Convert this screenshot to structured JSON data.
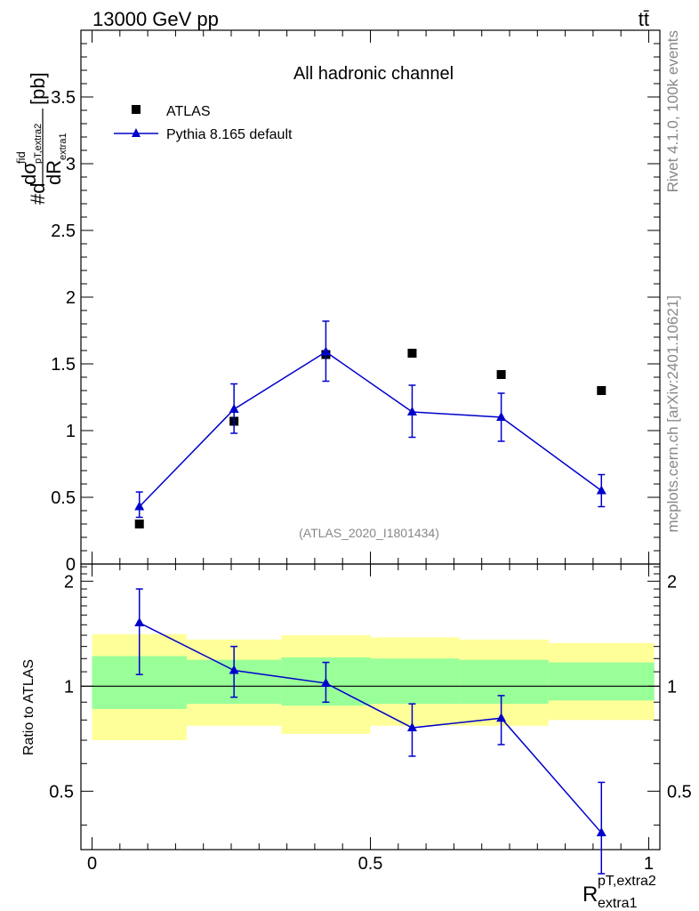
{
  "header": {
    "left_label": "13000 GeV pp",
    "right_label": "tt̄"
  },
  "side_labels": {
    "rivet": "Rivet 4.1.0,  100k events",
    "mcplots": "mcplots.cern.ch [arXiv:2401.10621]"
  },
  "chart_data": [
    {
      "type": "scatter",
      "panel": "main",
      "title": "All hadronic channel",
      "watermark": "(ATLAS_2020_I1801434)",
      "xlabel": {
        "base": "R",
        "sup": "pT,extra2",
        "sub": "extra1"
      },
      "ylabel": {
        "prefix": "#d",
        "num": "dσ",
        "num_sup": "fid",
        "num_sub": "pT,extra2",
        "den": "dR",
        "den_sub": "extra1",
        "unit": "[pb]"
      },
      "xlim": [
        -0.02,
        1.02
      ],
      "ylim": [
        0,
        4.0
      ],
      "yticks": [
        0,
        0.5,
        1,
        1.5,
        2,
        2.5,
        3,
        3.5
      ],
      "ytick_labels": [
        "0",
        "0.5",
        "1",
        "1.5",
        "2",
        "2.5",
        "3",
        "3.5"
      ],
      "xticks": [
        0,
        0.5,
        1
      ],
      "xtick_labels": [
        "0",
        "0.5",
        "1"
      ],
      "legend": {
        "position": "top-left",
        "entries": [
          "ATLAS",
          "Pythia 8.165 default"
        ]
      },
      "series": [
        {
          "name": "ATLAS",
          "marker": "square",
          "color": "#000000",
          "x": [
            0.085,
            0.255,
            0.42,
            0.575,
            0.735,
            0.915
          ],
          "y": [
            0.3,
            1.07,
            1.57,
            1.58,
            1.42,
            1.3
          ]
        },
        {
          "name": "Pythia 8.165 default",
          "marker": "triangle",
          "color": "#0000cc",
          "x": [
            0.085,
            0.255,
            0.42,
            0.575,
            0.735,
            0.915
          ],
          "y": [
            0.43,
            1.16,
            1.59,
            1.14,
            1.1,
            0.55
          ],
          "yerr_low": [
            0.08,
            0.18,
            0.22,
            0.19,
            0.18,
            0.12
          ],
          "yerr_high": [
            0.11,
            0.19,
            0.23,
            0.2,
            0.18,
            0.12
          ]
        }
      ]
    },
    {
      "type": "scatter",
      "panel": "ratio",
      "ylabel": "Ratio to ATLAS",
      "xlim": [
        -0.02,
        1.02
      ],
      "ylim": [
        0.34,
        2.24
      ],
      "yticks": [
        0.5,
        1,
        2
      ],
      "ytick_labels": [
        "0.5",
        "1",
        "2"
      ],
      "xticks": [
        0,
        0.5,
        1
      ],
      "xtick_labels": [
        "0",
        "0.5",
        "1"
      ],
      "bands": {
        "bin_edges": [
          0.0,
          0.17,
          0.34,
          0.5,
          0.66,
          0.82,
          1.01
        ],
        "yellow_low": [
          0.7,
          0.77,
          0.73,
          0.77,
          0.77,
          0.8
        ],
        "yellow_high": [
          1.41,
          1.36,
          1.4,
          1.38,
          1.36,
          1.33
        ],
        "green_low": [
          0.86,
          0.89,
          0.88,
          0.89,
          0.89,
          0.91
        ],
        "green_high": [
          1.22,
          1.19,
          1.21,
          1.2,
          1.19,
          1.17
        ],
        "yellow_color": "#ffff99",
        "green_color": "#99ff99"
      },
      "series": [
        {
          "name": "Pythia 8.165 default / ATLAS",
          "marker": "triangle",
          "color": "#0000cc",
          "x": [
            0.085,
            0.255,
            0.42,
            0.575,
            0.735,
            0.915
          ],
          "y": [
            1.52,
            1.11,
            1.02,
            0.76,
            0.81,
            0.38
          ],
          "yerr_low": [
            0.44,
            0.18,
            0.12,
            0.13,
            0.13,
            0.09
          ],
          "yerr_high": [
            0.38,
            0.19,
            0.15,
            0.13,
            0.13,
            0.15
          ]
        }
      ]
    }
  ]
}
